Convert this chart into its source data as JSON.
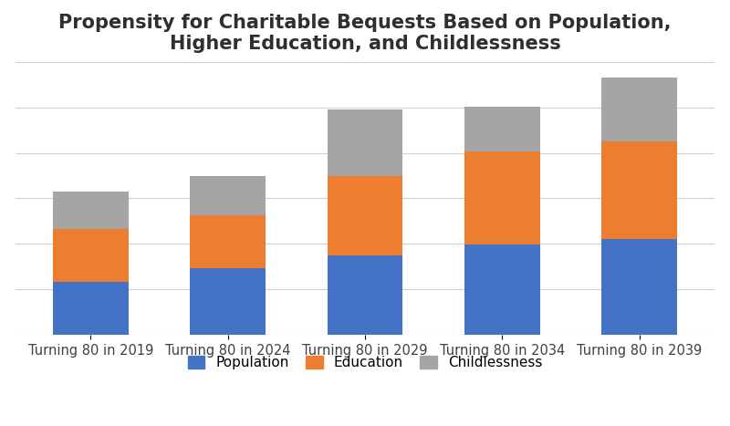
{
  "categories": [
    "Turning 80 in 2019",
    "Turning 80 in 2024",
    "Turning 80 in 2029",
    "Turning 80 in 2034",
    "Turning 80 in 2039"
  ],
  "population": [
    1.0,
    1.25,
    1.5,
    1.7,
    1.8
  ],
  "education": [
    1.0,
    1.0,
    1.5,
    1.75,
    1.85
  ],
  "childlessness": [
    0.7,
    0.75,
    1.25,
    0.85,
    1.2
  ],
  "colors": {
    "population": "#4472C4",
    "education": "#ED7D31",
    "childlessness": "#A5A5A5"
  },
  "legend_labels": [
    "Population",
    "Education",
    "Childlessness"
  ],
  "title": "Propensity for Charitable Bequests Based on Population,\nHigher Education, and Childlessness",
  "title_fontsize": 15,
  "tick_fontsize": 10.5,
  "legend_fontsize": 11,
  "background_color": "#FFFFFF",
  "grid_color": "#D0D0D0",
  "bar_width": 0.55
}
